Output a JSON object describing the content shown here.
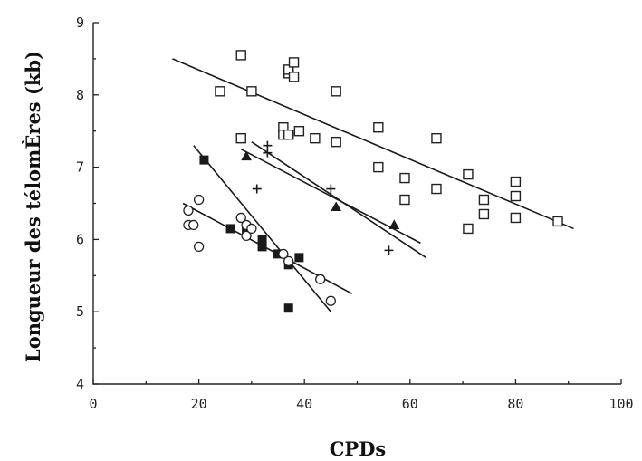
{
  "chart_data": {
    "type": "scatter",
    "xlabel": "CPDs",
    "ylabel": "Longueur des télomÈres (kb)",
    "xlim": [
      0,
      100
    ],
    "ylim": [
      4,
      9
    ],
    "x_ticks": [
      "0",
      "20",
      "40",
      "60",
      "80",
      "100"
    ],
    "y_ticks": [
      "4",
      "5",
      "6",
      "7",
      "8",
      "9"
    ],
    "grid": false,
    "series": [
      {
        "marker": "open-square",
        "points": [
          [
            24,
            8.05
          ],
          [
            28,
            8.55
          ],
          [
            30,
            8.05
          ],
          [
            28,
            7.4
          ],
          [
            36,
            7.55
          ],
          [
            36,
            7.45
          ],
          [
            37,
            8.3
          ],
          [
            37,
            8.35
          ],
          [
            38,
            8.25
          ],
          [
            38,
            8.45
          ],
          [
            39,
            7.5
          ],
          [
            37,
            7.45
          ],
          [
            42,
            7.4
          ],
          [
            46,
            8.05
          ],
          [
            46,
            7.35
          ],
          [
            54,
            7.55
          ],
          [
            54,
            7.0
          ],
          [
            59,
            6.85
          ],
          [
            59,
            6.55
          ],
          [
            65,
            7.4
          ],
          [
            65,
            6.7
          ],
          [
            71,
            6.9
          ],
          [
            71,
            6.15
          ],
          [
            74,
            6.55
          ],
          [
            74,
            6.35
          ],
          [
            80,
            6.8
          ],
          [
            80,
            6.6
          ],
          [
            80,
            6.3
          ],
          [
            88,
            6.25
          ]
        ],
        "trendline": [
          [
            15,
            8.5
          ],
          [
            91,
            6.15
          ]
        ]
      },
      {
        "marker": "plus",
        "points": [
          [
            31,
            6.7
          ],
          [
            33,
            7.3
          ],
          [
            33,
            7.2
          ],
          [
            45,
            6.7
          ],
          [
            56,
            5.85
          ]
        ],
        "trendline": [
          [
            30,
            7.35
          ],
          [
            63,
            5.75
          ]
        ]
      },
      {
        "marker": "filled-triangle",
        "points": [
          [
            29,
            7.15
          ],
          [
            46,
            6.45
          ],
          [
            57,
            6.2
          ]
        ],
        "trendline": [
          [
            28,
            7.25
          ],
          [
            62,
            5.95
          ]
        ]
      },
      {
        "marker": "filled-square",
        "points": [
          [
            21,
            7.1
          ],
          [
            26,
            6.15
          ],
          [
            29,
            6.15
          ],
          [
            32,
            6.0
          ],
          [
            32,
            5.9
          ],
          [
            35,
            5.8
          ],
          [
            37,
            5.65
          ],
          [
            37,
            5.05
          ],
          [
            39,
            5.75
          ]
        ],
        "trendline": [
          [
            19,
            7.3
          ],
          [
            45,
            5.0
          ]
        ]
      },
      {
        "marker": "open-circle",
        "points": [
          [
            18,
            6.4
          ],
          [
            18,
            6.2
          ],
          [
            19,
            6.2
          ],
          [
            20,
            6.55
          ],
          [
            20,
            5.9
          ],
          [
            28,
            6.3
          ],
          [
            29,
            6.2
          ],
          [
            29,
            6.05
          ],
          [
            30,
            6.15
          ],
          [
            36,
            5.8
          ],
          [
            37,
            5.7
          ],
          [
            43,
            5.45
          ],
          [
            45,
            5.15
          ]
        ],
        "trendline": [
          [
            17,
            6.5
          ],
          [
            49,
            5.25
          ]
        ]
      }
    ]
  }
}
